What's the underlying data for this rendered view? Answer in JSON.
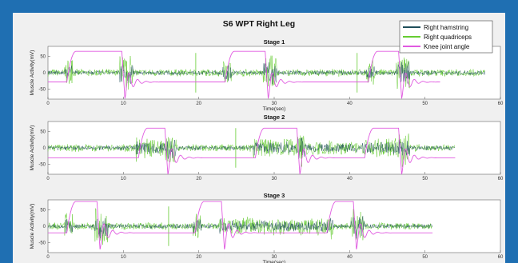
{
  "title": "S6 WPT Right Leg",
  "colors": {
    "frame": "#1f6fb2",
    "panel": "#f0f0f0",
    "hamstring": "#1f4e5a",
    "quadriceps": "#66cc33",
    "knee": "#e05ae0"
  },
  "legend": {
    "placement": "top-right",
    "entries": [
      {
        "label": "Right hamstring",
        "color": "#1f4e5a"
      },
      {
        "label": "Right quadriceps",
        "color": "#66cc33"
      },
      {
        "label": "Knee joint angle",
        "color": "#e05ae0"
      }
    ]
  },
  "chart_data": [
    {
      "type": "line",
      "title": "Stage 1",
      "xlabel": "Time(sec)",
      "ylabel": "Muscle Activity(mV)",
      "xlim": [
        0,
        60
      ],
      "ylim": [
        -80,
        80
      ],
      "xticks": [
        0,
        10,
        20,
        30,
        40,
        50,
        60
      ],
      "yticks": [
        50,
        0,
        -50
      ],
      "grid": false,
      "emg_end": 58,
      "knee_end": 52,
      "cycles": [
        {
          "knee_rise": 2.5,
          "knee_fall": 9.8,
          "knee_high": 65,
          "knee_low": -28
        },
        {
          "knee_rise": 23.5,
          "knee_fall": 28.8,
          "knee_high": 65,
          "knee_low": -28
        },
        {
          "knee_rise": 42.5,
          "knee_fall": 46.5,
          "knee_high": 65,
          "knee_low": -28
        }
      ],
      "spikes": [
        19.6,
        41.0
      ],
      "series": [
        {
          "name": "Right hamstring"
        },
        {
          "name": "Right quadriceps"
        },
        {
          "name": "Knee joint angle"
        }
      ]
    },
    {
      "type": "line",
      "title": "Stage 2",
      "xlabel": "",
      "ylabel": "Muscle Activity(mV)",
      "xlim": [
        0,
        60
      ],
      "ylim": [
        -80,
        80
      ],
      "xticks": [
        0,
        10,
        20,
        30,
        40,
        50,
        60
      ],
      "yticks": [
        50,
        0,
        -50
      ],
      "grid": false,
      "emg_end": 54,
      "knee_end": 54,
      "cycles": [
        {
          "knee_rise": 12.0,
          "knee_fall": 15.5,
          "knee_high": 60,
          "knee_low": -30
        },
        {
          "knee_rise": 27.5,
          "knee_fall": 33.0,
          "knee_high": 60,
          "knee_low": -30
        },
        {
          "knee_rise": 42.0,
          "knee_fall": 46.5,
          "knee_high": 60,
          "knee_low": -30
        }
      ],
      "spikes": [
        24.9
      ],
      "series": [
        {
          "name": "Right hamstring"
        },
        {
          "name": "Right quadriceps"
        },
        {
          "name": "Knee joint angle"
        }
      ]
    },
    {
      "type": "line",
      "title": "Stage 3",
      "xlabel": "Time(sec)",
      "ylabel": "Muscle Activity(mV)",
      "xlim": [
        0,
        60
      ],
      "ylim": [
        -80,
        80
      ],
      "xticks": [
        0,
        10,
        20,
        30,
        40,
        50,
        60
      ],
      "yticks": [
        50,
        0,
        -50
      ],
      "grid": false,
      "emg_end": 51,
      "knee_end": 51,
      "cycles": [
        {
          "knee_rise": 2.5,
          "knee_fall": 6.5,
          "knee_high": 75,
          "knee_low": -20
        },
        {
          "knee_rise": 19.5,
          "knee_fall": 23.0,
          "knee_high": 75,
          "knee_low": -20
        },
        {
          "knee_rise": 37.0,
          "knee_fall": 40.5,
          "knee_high": 75,
          "knee_low": -20
        }
      ],
      "spikes": [
        16.0
      ],
      "series": [
        {
          "name": "Right hamstring"
        },
        {
          "name": "Right quadriceps"
        },
        {
          "name": "Knee joint angle"
        }
      ]
    }
  ]
}
